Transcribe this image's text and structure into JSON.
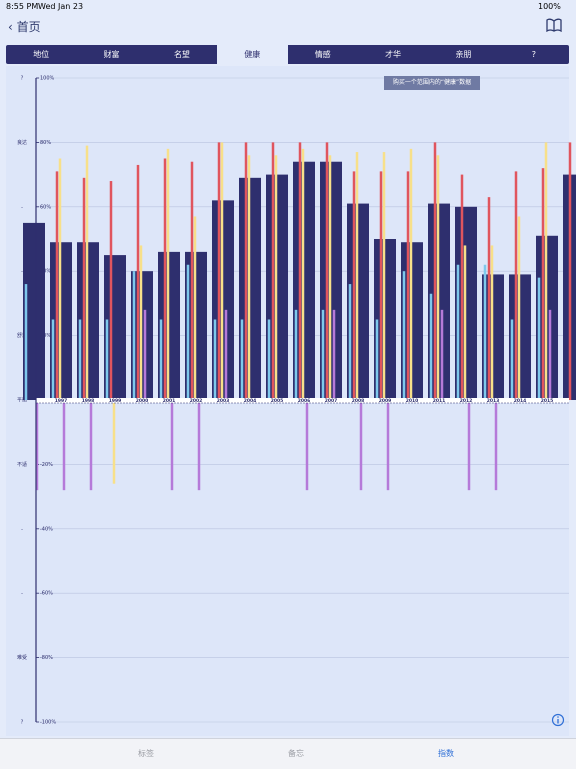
{
  "status_bar": {
    "time": "8:55 PM",
    "date": "Wed Jan 23",
    "battery": "100%"
  },
  "nav": {
    "back": "首页"
  },
  "tabs": [
    "地位",
    "财富",
    "名望",
    "健康",
    "情感",
    "才华",
    "亲朋",
    "?"
  ],
  "selected_tab": 3,
  "tooltip": "购买一个范围内的“健康”数据",
  "tab_bar": [
    "标签",
    "备忘",
    "指数"
  ],
  "selected_tab_bar": 2,
  "chart_data": {
    "type": "bar",
    "categories": [
      null,
      "1997",
      "1998",
      "1999",
      "2000",
      "2001",
      "2002",
      "2003",
      "2004",
      "2005",
      "2006",
      "2007",
      "2008",
      "2009",
      "2010",
      "2011",
      "2012",
      "2013",
      "2014",
      "2015",
      null
    ],
    "series": [
      {
        "color": "#2e2f6e",
        "values": [
          55,
          49,
          49,
          45,
          40,
          46,
          46,
          62,
          69,
          70,
          74,
          74,
          61,
          50,
          49,
          61,
          60,
          39,
          39,
          51,
          70
        ]
      },
      {
        "color": "#7ec8ec",
        "values": [
          36,
          25,
          25,
          25,
          40,
          25,
          42,
          25,
          25,
          25,
          28,
          28,
          36,
          25,
          40,
          33,
          42,
          42,
          25,
          38,
          null
        ]
      },
      {
        "color": "#e0555e",
        "values": [
          null,
          71,
          69,
          68,
          73,
          75,
          74,
          80,
          80,
          80,
          80,
          80,
          71,
          71,
          71,
          80,
          70,
          63,
          71,
          72,
          80
        ]
      },
      {
        "color": "#f7e08a",
        "values": [
          null,
          75,
          79,
          -26,
          48,
          78,
          57,
          80,
          76,
          76,
          78,
          76,
          77,
          77,
          78,
          76,
          48,
          48,
          57,
          80,
          null
        ]
      },
      {
        "color": "#b57ad9",
        "values": [
          -28,
          -28,
          -28,
          null,
          28,
          -28,
          -28,
          28,
          null,
          null,
          -28,
          28,
          -28,
          -28,
          null,
          28,
          -28,
          -28,
          null,
          28,
          null
        ]
      }
    ],
    "ylim": [
      -100,
      100
    ],
    "yticks": [
      {
        "value": 100,
        "label": "100%"
      },
      {
        "value": 80,
        "label": "80%"
      },
      {
        "value": 60,
        "label": "60%"
      },
      {
        "value": 40,
        "label": "40%"
      },
      {
        "value": 20,
        "label": "20%"
      },
      {
        "value": -20,
        "label": "-20%"
      },
      {
        "value": -40,
        "label": "-40%"
      },
      {
        "value": -60,
        "label": "-60%"
      },
      {
        "value": -80,
        "label": "-80%"
      },
      {
        "value": -100,
        "label": "-100%"
      }
    ],
    "y_level_labels": [
      {
        "value": 100,
        "label": "?"
      },
      {
        "value": 80,
        "label": "良达"
      },
      {
        "value": 60,
        "label": "-"
      },
      {
        "value": 40,
        "label": "-"
      },
      {
        "value": 20,
        "label": "舒适"
      },
      {
        "value": 0,
        "label": "平衡"
      },
      {
        "value": -20,
        "label": "不适"
      },
      {
        "value": -40,
        "label": "-"
      },
      {
        "value": -60,
        "label": "-"
      },
      {
        "value": -80,
        "label": "难受"
      },
      {
        "value": -100,
        "label": "?"
      }
    ],
    "grid": true
  }
}
